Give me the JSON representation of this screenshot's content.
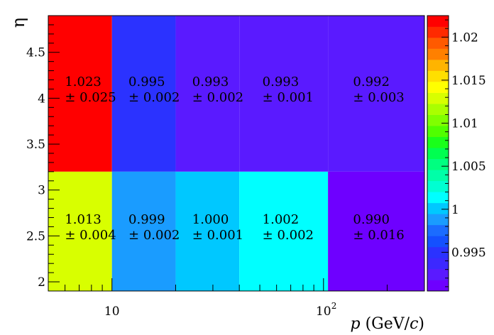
{
  "chart_data": {
    "type": "heatmap",
    "xlabel": "p (GeV/c)",
    "ylabel": "η",
    "x_scale": "log",
    "x_bin_edges": [
      5,
      10,
      20,
      40,
      105,
      300
    ],
    "y_bin_edges": [
      1.9,
      3.2,
      4.9
    ],
    "xlim": [
      5,
      300
    ],
    "ylim": [
      1.9,
      4.9
    ],
    "x_ticks": [
      10,
      100
    ],
    "x_tick_labels": [
      "10",
      "10²"
    ],
    "y_ticks": [
      2,
      2.5,
      3,
      3.5,
      4,
      4.5
    ],
    "y_tick_labels": [
      "2",
      "2.5",
      "3",
      "3.5",
      "4",
      "4.5"
    ],
    "zlim": [
      0.9905,
      1.0225
    ],
    "z_ticks": [
      0.995,
      1.0,
      1.005,
      1.01,
      1.015,
      1.02
    ],
    "z_tick_labels": [
      "0.995",
      "1",
      "1.005",
      "1.01",
      "1.015",
      "1.02"
    ],
    "cells": [
      {
        "x_bin": 0,
        "y_bin": 1,
        "value": 1.023,
        "label": "1.023",
        "err_label": "± 0.025"
      },
      {
        "x_bin": 1,
        "y_bin": 1,
        "value": 0.995,
        "label": "0.995",
        "err_label": "± 0.002"
      },
      {
        "x_bin": 2,
        "y_bin": 1,
        "value": 0.993,
        "label": "0.993",
        "err_label": "± 0.002"
      },
      {
        "x_bin": 3,
        "y_bin": 1,
        "value": 0.993,
        "label": "0.993",
        "err_label": "± 0.001"
      },
      {
        "x_bin": 4,
        "y_bin": 1,
        "value": 0.992,
        "label": "0.992",
        "err_label": "± 0.003"
      },
      {
        "x_bin": 0,
        "y_bin": 0,
        "value": 1.013,
        "label": "1.013",
        "err_label": "± 0.004"
      },
      {
        "x_bin": 1,
        "y_bin": 0,
        "value": 0.999,
        "label": "0.999",
        "err_label": "± 0.002"
      },
      {
        "x_bin": 2,
        "y_bin": 0,
        "value": 1.0,
        "label": "1.000",
        "err_label": "± 0.001"
      },
      {
        "x_bin": 3,
        "y_bin": 0,
        "value": 1.002,
        "label": "1.002",
        "err_label": "± 0.002"
      },
      {
        "x_bin": 4,
        "y_bin": 0,
        "value": 0.99,
        "label": "0.990",
        "err_label": "± 0.016"
      }
    ],
    "palette": [
      "#6e00ff",
      "#5a1aff",
      "#3c28ff",
      "#2b32ff",
      "#1450ff",
      "#1b6cff",
      "#1a9cff",
      "#00c8ff",
      "#00ffff",
      "#00ffd2",
      "#00ffa8",
      "#00ff80",
      "#00ff50",
      "#1aff1a",
      "#50ff00",
      "#80ff00",
      "#aaff00",
      "#d8ff00",
      "#ffff00",
      "#ffdf00",
      "#ffb400",
      "#ff8000",
      "#ff5a00",
      "#ff2a00",
      "#ff0000"
    ]
  }
}
